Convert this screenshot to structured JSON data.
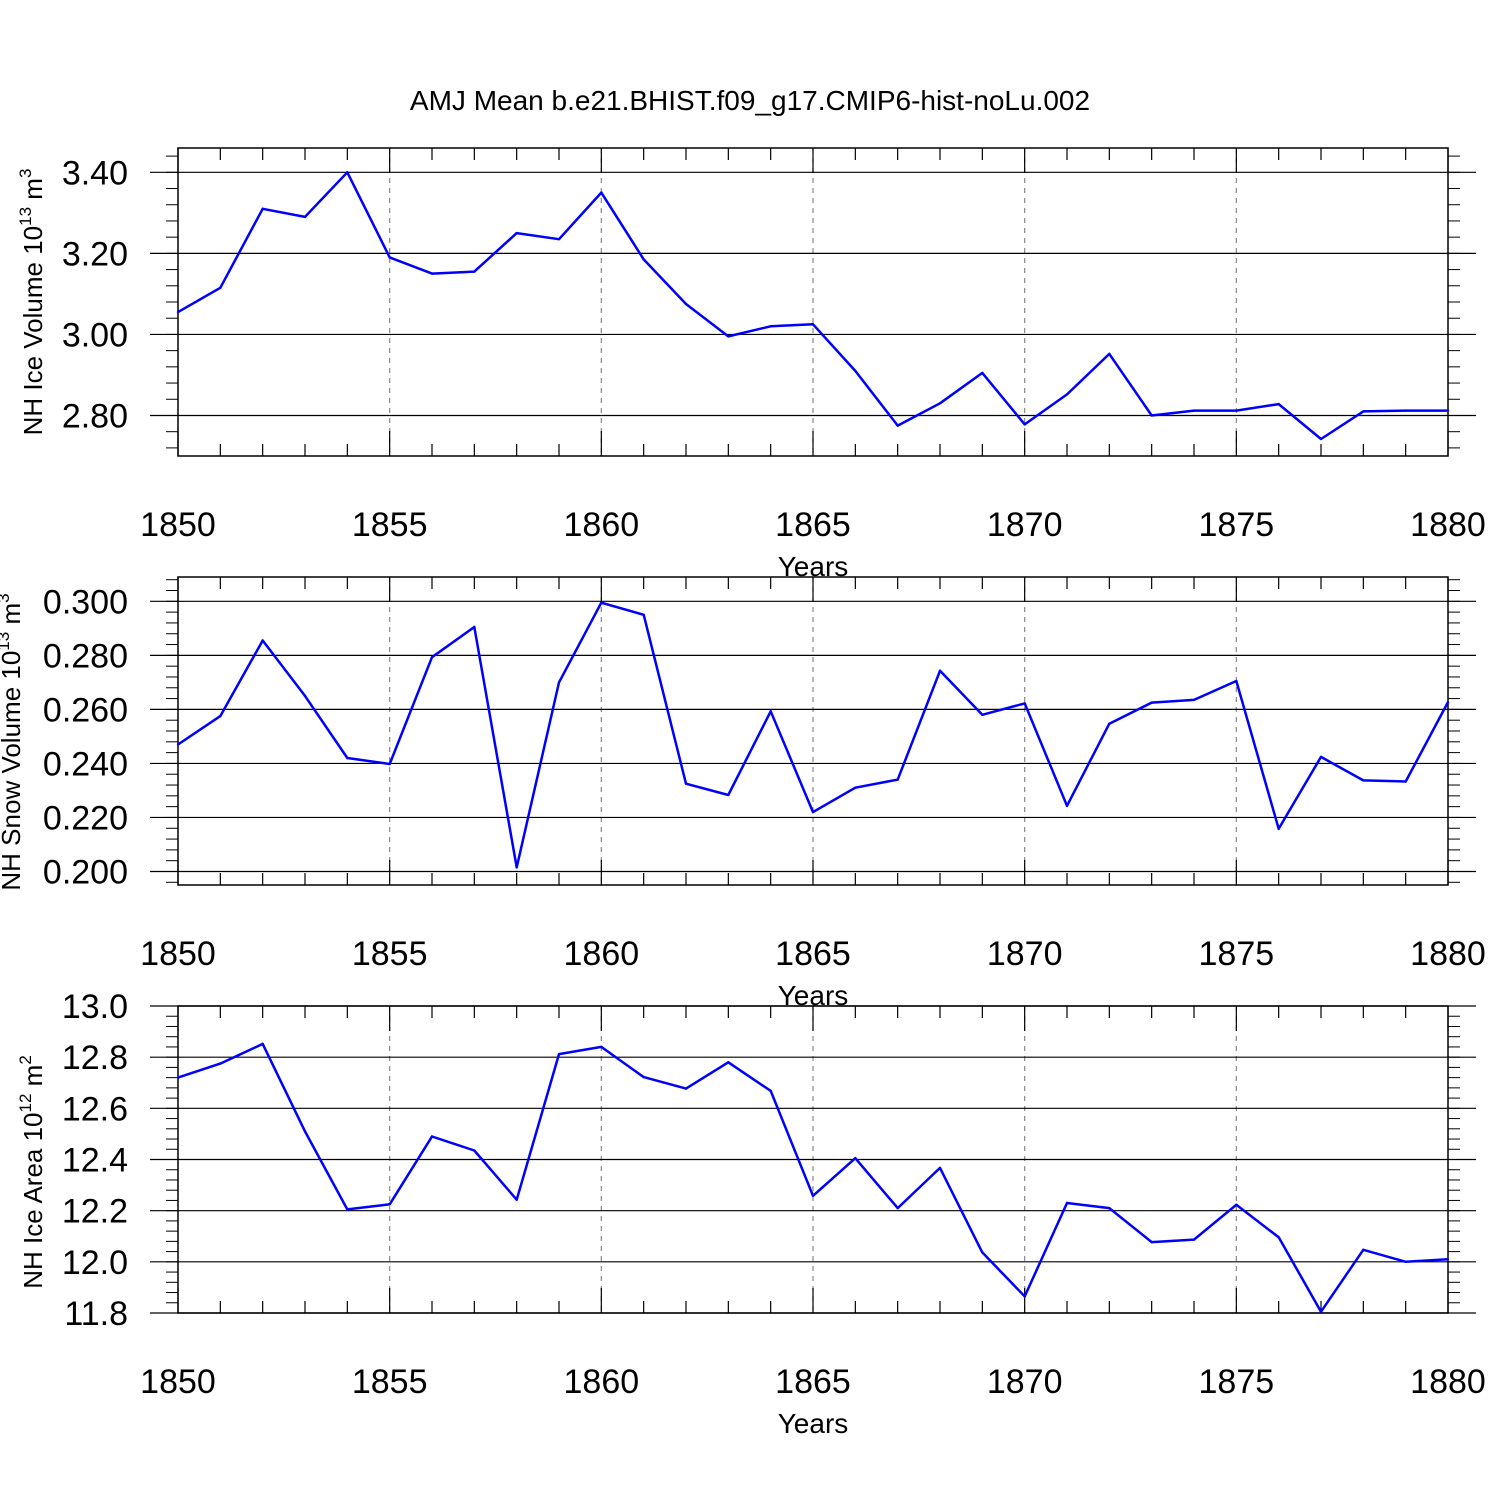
{
  "title": "AMJ Mean b.e21.BHIST.f09_g17.CMIP6-hist-noLu.002",
  "line_color": "#0000ff",
  "chart_data": [
    {
      "type": "line",
      "ylabel_main": "NH Ice Volume 10",
      "ylabel_exp": "13",
      "ylabel_unit": "m",
      "ylabel_unit_exp": "3",
      "xlabel": "Years",
      "xlim": [
        1850,
        1880
      ],
      "ylim": [
        2.7,
        3.46
      ],
      "yticks": [
        2.8,
        3.0,
        3.2,
        3.4
      ],
      "ytick_labels": [
        "2.80",
        "3.00",
        "3.20",
        "3.40"
      ],
      "xticks": [
        1850,
        1855,
        1860,
        1865,
        1870,
        1875,
        1880
      ],
      "xtick_labels": [
        "1850",
        "1855",
        "1860",
        "1865",
        "1870",
        "1875",
        "1880"
      ],
      "x": [
        1850,
        1851,
        1852,
        1853,
        1854,
        1855,
        1856,
        1857,
        1858,
        1859,
        1860,
        1861,
        1862,
        1863,
        1864,
        1865,
        1866,
        1867,
        1868,
        1869,
        1870,
        1871,
        1872,
        1873,
        1874,
        1875,
        1876,
        1877,
        1878,
        1879,
        1880
      ],
      "values": [
        3.055,
        3.115,
        3.31,
        3.29,
        3.4,
        3.19,
        3.15,
        3.155,
        3.25,
        3.235,
        3.35,
        3.185,
        3.075,
        2.995,
        3.02,
        3.025,
        2.91,
        2.775,
        2.83,
        2.905,
        2.778,
        2.852,
        2.952,
        2.8,
        2.812,
        2.812,
        2.828,
        2.742,
        2.81,
        2.812,
        2.812
      ]
    },
    {
      "type": "line",
      "ylabel_main": "NH Snow Volume 10",
      "ylabel_exp": "13",
      "ylabel_unit": "m",
      "ylabel_unit_exp": "3",
      "xlabel": "Years",
      "xlim": [
        1850,
        1880
      ],
      "ylim": [
        0.195,
        0.309
      ],
      "yticks": [
        0.2,
        0.22,
        0.24,
        0.26,
        0.28,
        0.3
      ],
      "ytick_labels": [
        "0.200",
        "0.220",
        "0.240",
        "0.260",
        "0.280",
        "0.300"
      ],
      "xticks": [
        1850,
        1855,
        1860,
        1865,
        1870,
        1875,
        1880
      ],
      "xtick_labels": [
        "1850",
        "1855",
        "1860",
        "1865",
        "1870",
        "1875",
        "1880"
      ],
      "x": [
        1850,
        1851,
        1852,
        1853,
        1854,
        1855,
        1856,
        1857,
        1858,
        1859,
        1860,
        1861,
        1862,
        1863,
        1864,
        1865,
        1866,
        1867,
        1868,
        1869,
        1870,
        1871,
        1872,
        1873,
        1874,
        1875,
        1876,
        1877,
        1878,
        1879,
        1880
      ],
      "values": [
        0.247,
        0.2575,
        0.2855,
        0.265,
        0.242,
        0.2398,
        0.2793,
        0.2905,
        0.2015,
        0.27,
        0.2995,
        0.295,
        0.2325,
        0.2283,
        0.2593,
        0.222,
        0.231,
        0.234,
        0.2743,
        0.258,
        0.2622,
        0.2243,
        0.2547,
        0.2625,
        0.2635,
        0.2705,
        0.2158,
        0.2424,
        0.2337,
        0.2333,
        0.2627
      ]
    },
    {
      "type": "line",
      "ylabel_main": "NH Ice Area 10",
      "ylabel_exp": "12",
      "ylabel_unit": "m",
      "ylabel_unit_exp": "2",
      "xlabel": "Years",
      "xlim": [
        1850,
        1880
      ],
      "ylim": [
        11.8,
        13.0
      ],
      "yticks": [
        11.8,
        12.0,
        12.2,
        12.4,
        12.6,
        12.8,
        13.0
      ],
      "ytick_labels": [
        "11.8",
        "12.0",
        "12.2",
        "12.4",
        "12.6",
        "12.8",
        "13.0"
      ],
      "xticks": [
        1850,
        1855,
        1860,
        1865,
        1870,
        1875,
        1880
      ],
      "xtick_labels": [
        "1850",
        "1855",
        "1860",
        "1865",
        "1870",
        "1875",
        "1880"
      ],
      "x": [
        1850,
        1851,
        1852,
        1853,
        1854,
        1855,
        1856,
        1857,
        1858,
        1859,
        1860,
        1861,
        1862,
        1863,
        1864,
        1865,
        1866,
        1867,
        1868,
        1869,
        1870,
        1871,
        1872,
        1873,
        1874,
        1875,
        1876,
        1877,
        1878,
        1879,
        1880
      ],
      "values": [
        12.72,
        12.775,
        12.852,
        12.51,
        12.205,
        12.225,
        12.49,
        12.435,
        12.243,
        12.812,
        12.84,
        12.722,
        12.677,
        12.78,
        12.668,
        12.258,
        12.405,
        12.21,
        12.367,
        12.037,
        11.865,
        12.23,
        12.21,
        12.077,
        12.087,
        12.223,
        12.096,
        11.805,
        12.047,
        12.0,
        12.01
      ]
    }
  ]
}
